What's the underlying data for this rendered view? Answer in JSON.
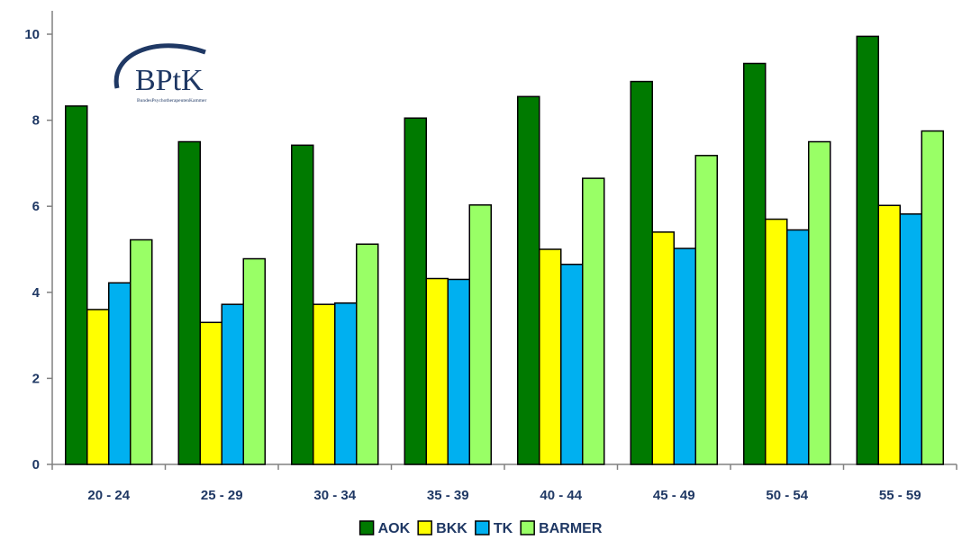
{
  "logo": {
    "text": "BPtK",
    "subtext": "BundesPsychotherapeutenKammer"
  },
  "chart_data": {
    "type": "bar",
    "categories": [
      "20 - 24",
      "25 - 29",
      "30 - 34",
      "35 - 39",
      "40 - 44",
      "45 - 49",
      "50 - 54",
      "55 - 59"
    ],
    "series": [
      {
        "name": "AOK",
        "color": "#007a00",
        "values": [
          8.33,
          7.5,
          7.42,
          8.05,
          8.55,
          8.9,
          9.32,
          9.95
        ]
      },
      {
        "name": "BKK",
        "color": "#ffff00",
        "values": [
          3.6,
          3.3,
          3.72,
          4.32,
          5.0,
          5.4,
          5.7,
          6.02
        ]
      },
      {
        "name": "TK",
        "color": "#00b0f0",
        "values": [
          4.22,
          3.72,
          3.75,
          4.3,
          4.65,
          5.02,
          5.45,
          5.82
        ]
      },
      {
        "name": "BARMER",
        "color": "#99ff66",
        "values": [
          5.22,
          4.78,
          5.12,
          6.03,
          6.65,
          7.18,
          7.5,
          7.75
        ]
      }
    ],
    "yticks": [
      0,
      2,
      4,
      6,
      8,
      10
    ],
    "ylim": [
      0,
      10
    ],
    "grid": false,
    "legend": "bottom-center",
    "title": "",
    "xlabel": "",
    "ylabel": ""
  }
}
